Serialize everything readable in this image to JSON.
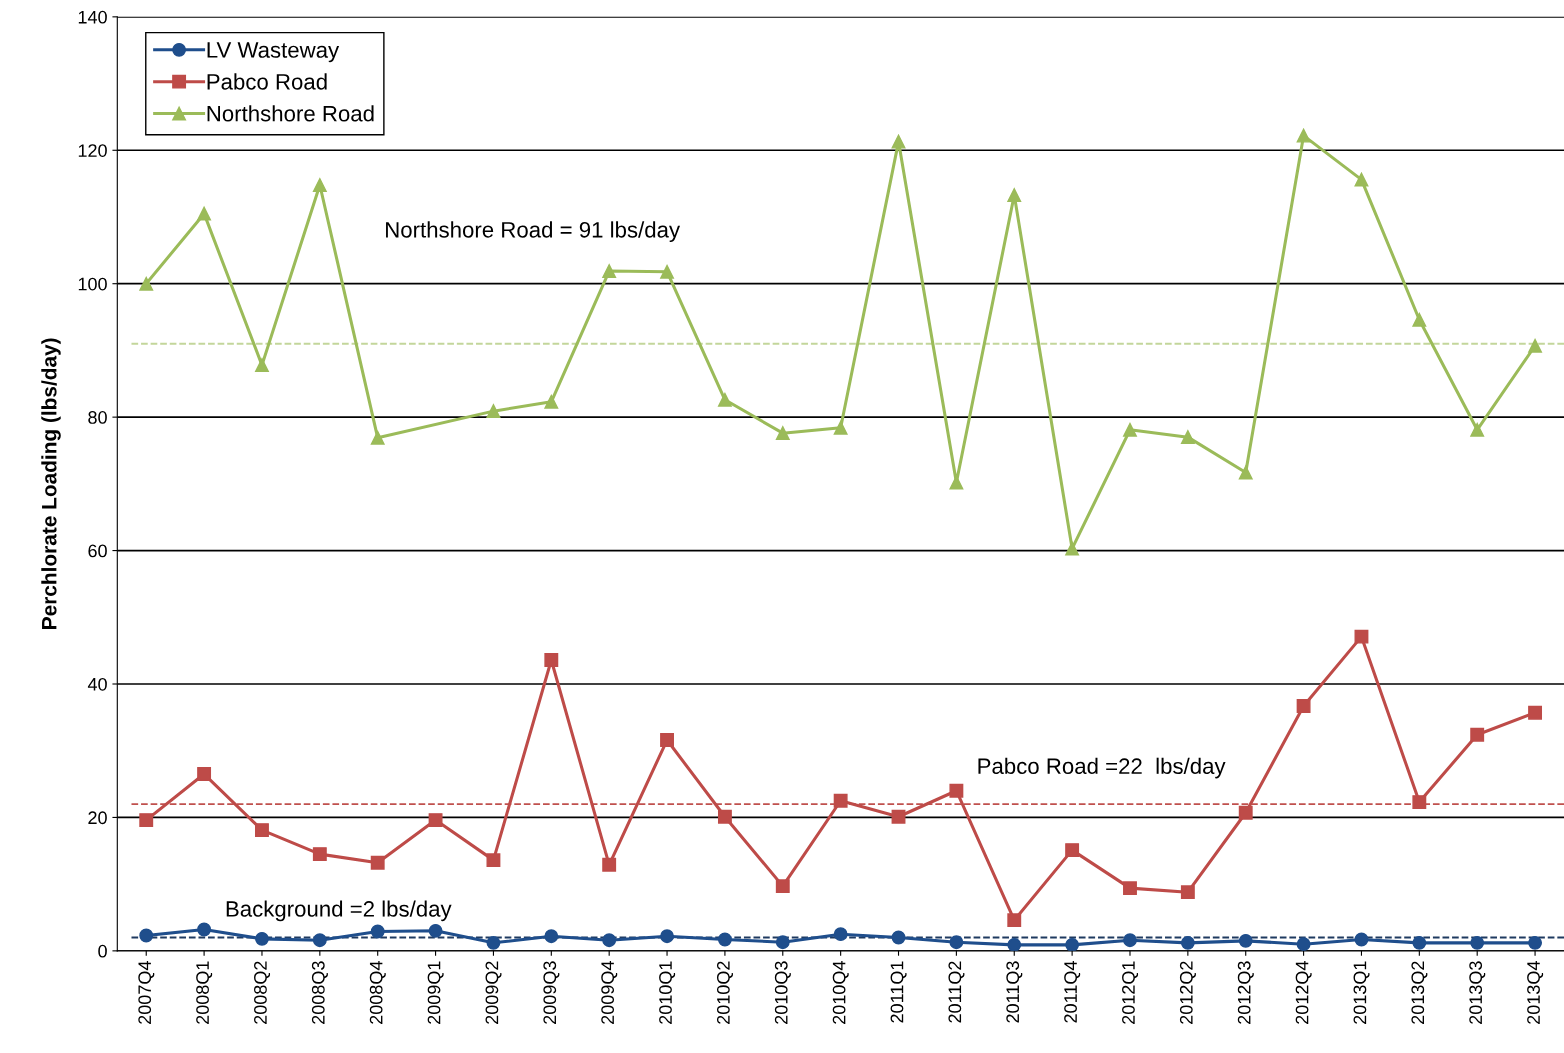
{
  "chart_data": {
    "type": "line",
    "ylabel": "Perchlorate Loading (lbs/day)",
    "categories": [
      "2007Q4",
      "2008Q1",
      "2008Q2",
      "2008Q3",
      "2008Q4",
      "2009Q1",
      "2009Q2",
      "2009Q3",
      "2009Q4",
      "2010Q1",
      "2010Q2",
      "2010Q3",
      "2010Q4",
      "2011Q1",
      "2011Q2",
      "2011Q3",
      "2011Q4",
      "2012Q1",
      "2012Q2",
      "2012Q3",
      "2012Q4",
      "2013Q1",
      "2013Q2",
      "2013Q3",
      "2013Q4"
    ],
    "series": [
      {
        "name": "LV Wasteway",
        "color": "#1f4e8c",
        "marker": "circle",
        "values": [
          2.3,
          3.2,
          1.8,
          1.6,
          2.9,
          3.0,
          1.2,
          2.2,
          1.6,
          2.2,
          1.7,
          1.3,
          2.5,
          2.0,
          1.3,
          0.9,
          0.9,
          1.6,
          1.2,
          1.5,
          1.0,
          1.7,
          1.2,
          1.2,
          1.2
        ]
      },
      {
        "name": "Pabco Road",
        "color": "#be4b48",
        "marker": "square",
        "values": [
          19.6,
          26.5,
          18.1,
          14.5,
          13.2,
          19.6,
          13.6,
          43.6,
          12.9,
          31.6,
          20.1,
          9.7,
          22.5,
          20.1,
          24.0,
          4.6,
          15.1,
          9.4,
          8.8,
          20.7,
          36.7,
          47.1,
          22.3,
          32.4,
          35.7
        ]
      },
      {
        "name": "Northshore Road",
        "color": "#9bbb59",
        "marker": "triangle",
        "values": [
          100,
          110.5,
          87.8,
          114.8,
          76.9,
          null,
          80.9,
          82.3,
          101.9,
          101.8,
          82.6,
          77.6,
          78.4,
          121.3,
          70.2,
          113.3,
          60.3,
          78.1,
          77.0,
          71.7,
          122.2,
          115.6,
          94.6,
          78.1,
          90.7
        ]
      }
    ],
    "ylim": [
      0,
      140
    ],
    "yticks": [
      0,
      20,
      40,
      60,
      80,
      100,
      120,
      140
    ],
    "ref_lines": [
      {
        "axis": "y",
        "value": 91,
        "color": "#c3d69b",
        "line_style": "dashed"
      },
      {
        "axis": "y",
        "value": 22,
        "label": "Pabco Road =22  lbs/day",
        "color": "#c0504d",
        "line_style": "dashed"
      },
      {
        "axis": "y",
        "value": 2,
        "label": "Background =2 lbs/day",
        "color": "#1f3a60",
        "line_style": "dashed"
      }
    ],
    "annotations": [
      "Northshore Road = 91 lbs/day"
    ],
    "grid": "y",
    "legend": "top left",
    "line_style": "solid"
  }
}
